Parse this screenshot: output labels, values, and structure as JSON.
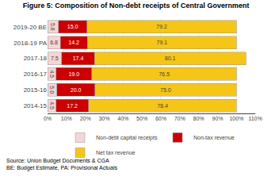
{
  "chart_data": {
    "type": "bar",
    "orientation": "horizontal",
    "stacked": true,
    "title": "Figure 5: Composition of Non-debt receipts of Central Government",
    "categories": [
      "2019-20 BE",
      "2018-19 PA",
      "2017-18",
      "2016-17",
      "2015-16",
      "2014-15"
    ],
    "series": [
      {
        "name": "Non-debt capital receipts",
        "color": "#f5d5d5",
        "values": [
          5.8,
          6.8,
          7.5,
          4.5,
          5.0,
          4.5
        ],
        "value_labels": [
          "5.8",
          "6.8",
          "7.5",
          "4.5",
          "5.0",
          "4.5"
        ]
      },
      {
        "name": "Non-tax revenue",
        "color": "#cc0000",
        "values": [
          15.0,
          14.2,
          17.4,
          19.0,
          20.0,
          17.2
        ],
        "value_labels": [
          "15.0",
          "14.2",
          "17.4",
          "19.0",
          "20.0",
          "17.2"
        ]
      },
      {
        "name": "Net tax revenue",
        "color": "#f5c518",
        "values": [
          79.2,
          79.1,
          80.1,
          76.5,
          75.0,
          78.4
        ],
        "value_labels": [
          "79.2",
          "79.1",
          "80.1",
          "76.5",
          "75.0",
          "78.4"
        ]
      }
    ],
    "xlim": [
      0,
      110
    ],
    "xticks": [
      {
        "value": 0,
        "label": "0%"
      },
      {
        "value": 10,
        "label": "10%"
      },
      {
        "value": 20,
        "label": "20%"
      },
      {
        "value": 30,
        "label": "30%"
      },
      {
        "value": 40,
        "label": "40%"
      },
      {
        "value": 50,
        "label": "50%"
      },
      {
        "value": 60,
        "label": "60%"
      },
      {
        "value": 70,
        "label": "70%"
      },
      {
        "value": 80,
        "label": "80%"
      },
      {
        "value": 90,
        "label": "90%"
      },
      {
        "value": 100,
        "label": "100%"
      },
      {
        "value": 110,
        "label": "110%"
      }
    ],
    "grid": true,
    "legend": "bottom",
    "data_labels": true,
    "annotations": [
      "Source: Union Budget Documents & CGA\nBE: Budget Estimate, PA: Provisional Actuals"
    ]
  }
}
